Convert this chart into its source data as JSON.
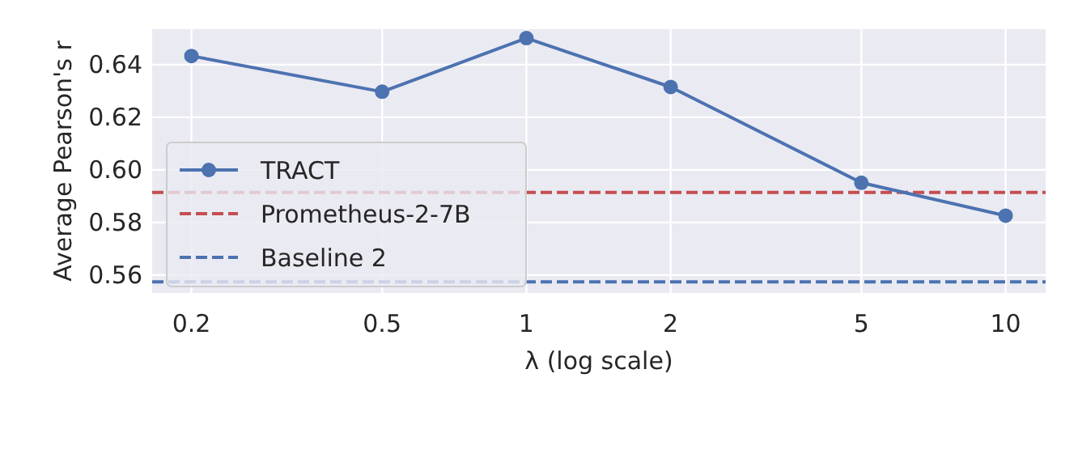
{
  "chart_data": {
    "type": "line",
    "xlabel": "λ (log scale)",
    "ylabel": "Average Pearson's r",
    "log": "x",
    "x": [
      0.2,
      0.5,
      1,
      2,
      5,
      10
    ],
    "series": [
      {
        "name": "TRACT",
        "color": "#4c72b0",
        "values": [
          0.6433,
          0.6297,
          0.6501,
          0.6315,
          0.5951,
          0.5826
        ]
      }
    ],
    "xlim": [
      0.1656,
      12.12
    ],
    "xticks": [
      0.2,
      0.5,
      1,
      2,
      5,
      10
    ],
    "ylim": [
      0.5532,
      0.6535
    ],
    "yticks": [
      0.56,
      0.58,
      {
        "value": 0.6,
        "label": "0.60"
      },
      0.62,
      0.64
    ],
    "ref_lines": [
      {
        "axis": "y",
        "value": 0.5914,
        "label": "Prometheus-2-7B",
        "color": "#c44e52",
        "line_style": "dashed"
      },
      {
        "axis": "y",
        "value": 0.5574,
        "label": "Baseline 2",
        "color": "#4c72b0",
        "line_style": "dashed"
      }
    ],
    "grid": true,
    "legend": "left",
    "marker": "circle",
    "line_style": "solid"
  }
}
